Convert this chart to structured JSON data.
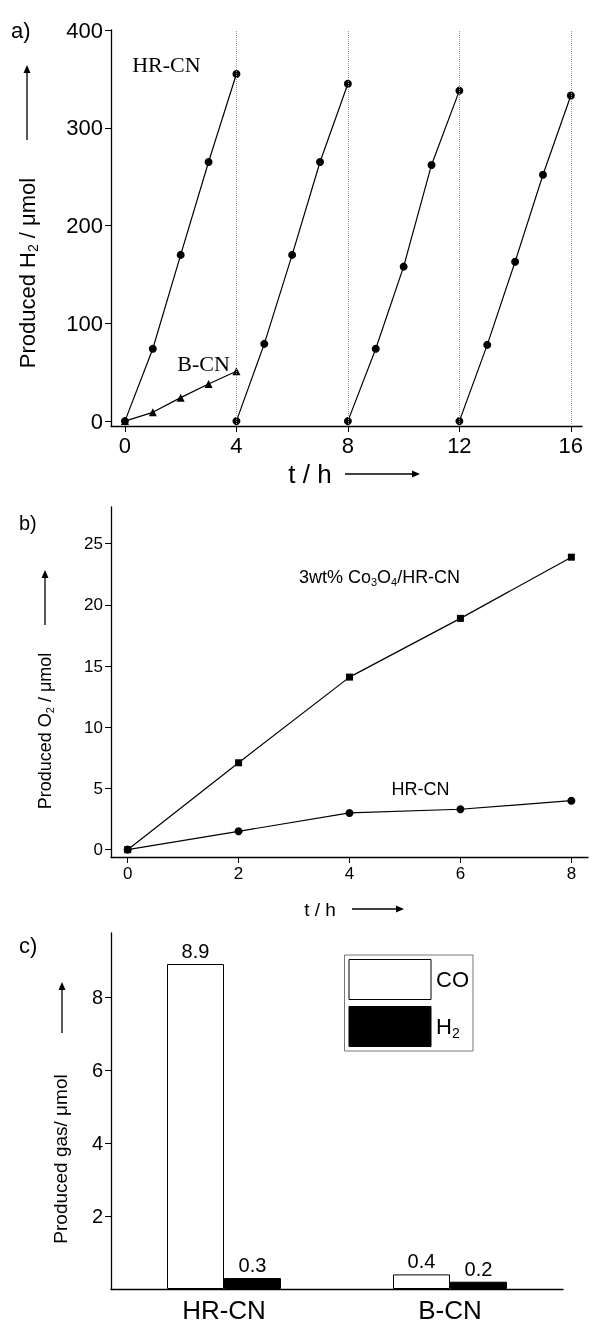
{
  "chart_data": [
    {
      "type": "line",
      "title": "a)",
      "xlabel": "t / h",
      "ylabel": "Produced H$_{2}$ / μmol",
      "xlim": [
        -0.5,
        16.4
      ],
      "xticks": [
        0,
        4,
        8,
        12,
        16
      ],
      "ylim": [
        -5,
        400
      ],
      "yticks": [
        0,
        100,
        200,
        300,
        400
      ],
      "series": [
        {
          "name": "HR-CN",
          "color": "#000000",
          "marker": "circle",
          "x": [
            0,
            1,
            2,
            3,
            4
          ],
          "values": [
            0,
            74,
            170,
            265,
            355
          ]
        },
        {
          "color": "#000000",
          "marker": "circle",
          "x": [
            4,
            5,
            6,
            7,
            8
          ],
          "values": [
            0,
            79,
            170,
            265,
            345
          ]
        },
        {
          "color": "#000000",
          "marker": "circle",
          "x": [
            8,
            9,
            10,
            11,
            12
          ],
          "values": [
            0,
            74,
            158,
            262,
            338
          ]
        },
        {
          "color": "#000000",
          "marker": "circle",
          "x": [
            12,
            13,
            14,
            15,
            16
          ],
          "values": [
            0,
            78,
            163,
            252,
            333
          ]
        },
        {
          "name": "B-CN",
          "color": "#000000",
          "marker": "triangle",
          "x": [
            0,
            1,
            2,
            3,
            4
          ],
          "values": [
            0,
            9,
            24,
            38,
            51
          ]
        }
      ],
      "ref_lines": [
        {
          "axis": "x",
          "value": 4,
          "color": "#999999",
          "line_style": "dotted"
        },
        {
          "axis": "x",
          "value": 8,
          "color": "#999999",
          "line_style": "dotted"
        },
        {
          "axis": "x",
          "value": 12,
          "color": "#999999",
          "line_style": "dotted"
        },
        {
          "axis": "x",
          "value": 16,
          "color": "#999999",
          "line_style": "dotted"
        }
      ]
    },
    {
      "type": "line",
      "title": "b)",
      "xlabel": "t / h",
      "ylabel": "Produced O$_{2}$ / μmol",
      "xlim": [
        -0.3,
        8.3
      ],
      "xticks": [
        0,
        2,
        4,
        6,
        8
      ],
      "ylim": [
        -0.6,
        28
      ],
      "yticks": [
        0,
        5,
        10,
        15,
        20,
        25
      ],
      "series": [
        {
          "name": "3wt% Co$_{3}$O$_{4}$/HR-CN",
          "color": "#000000",
          "marker": "square",
          "x": [
            0,
            2,
            4,
            6,
            8
          ],
          "values": [
            0,
            7.1,
            14.1,
            18.9,
            23.9
          ]
        },
        {
          "name": "HR-CN",
          "color": "#000000",
          "marker": "circle",
          "x": [
            0,
            2,
            4,
            6,
            8
          ],
          "values": [
            0,
            1.5,
            3.0,
            3.3,
            4.0
          ]
        }
      ]
    },
    {
      "type": "bar",
      "title": "c)",
      "ylabel": "Produced gas/ μmol",
      "categories": [
        "HR-CN",
        "B-CN"
      ],
      "ylim": [
        0,
        9.75
      ],
      "yticks": [
        2,
        4,
        6,
        8
      ],
      "data_labels": true,
      "legend": "top right",
      "series": [
        {
          "name": "CO",
          "color": "#ffffff",
          "values": [
            8.9,
            0.4
          ]
        },
        {
          "name": "H$_{2}$",
          "color": "#000000",
          "values": [
            0.3,
            0.2
          ]
        }
      ]
    }
  ]
}
